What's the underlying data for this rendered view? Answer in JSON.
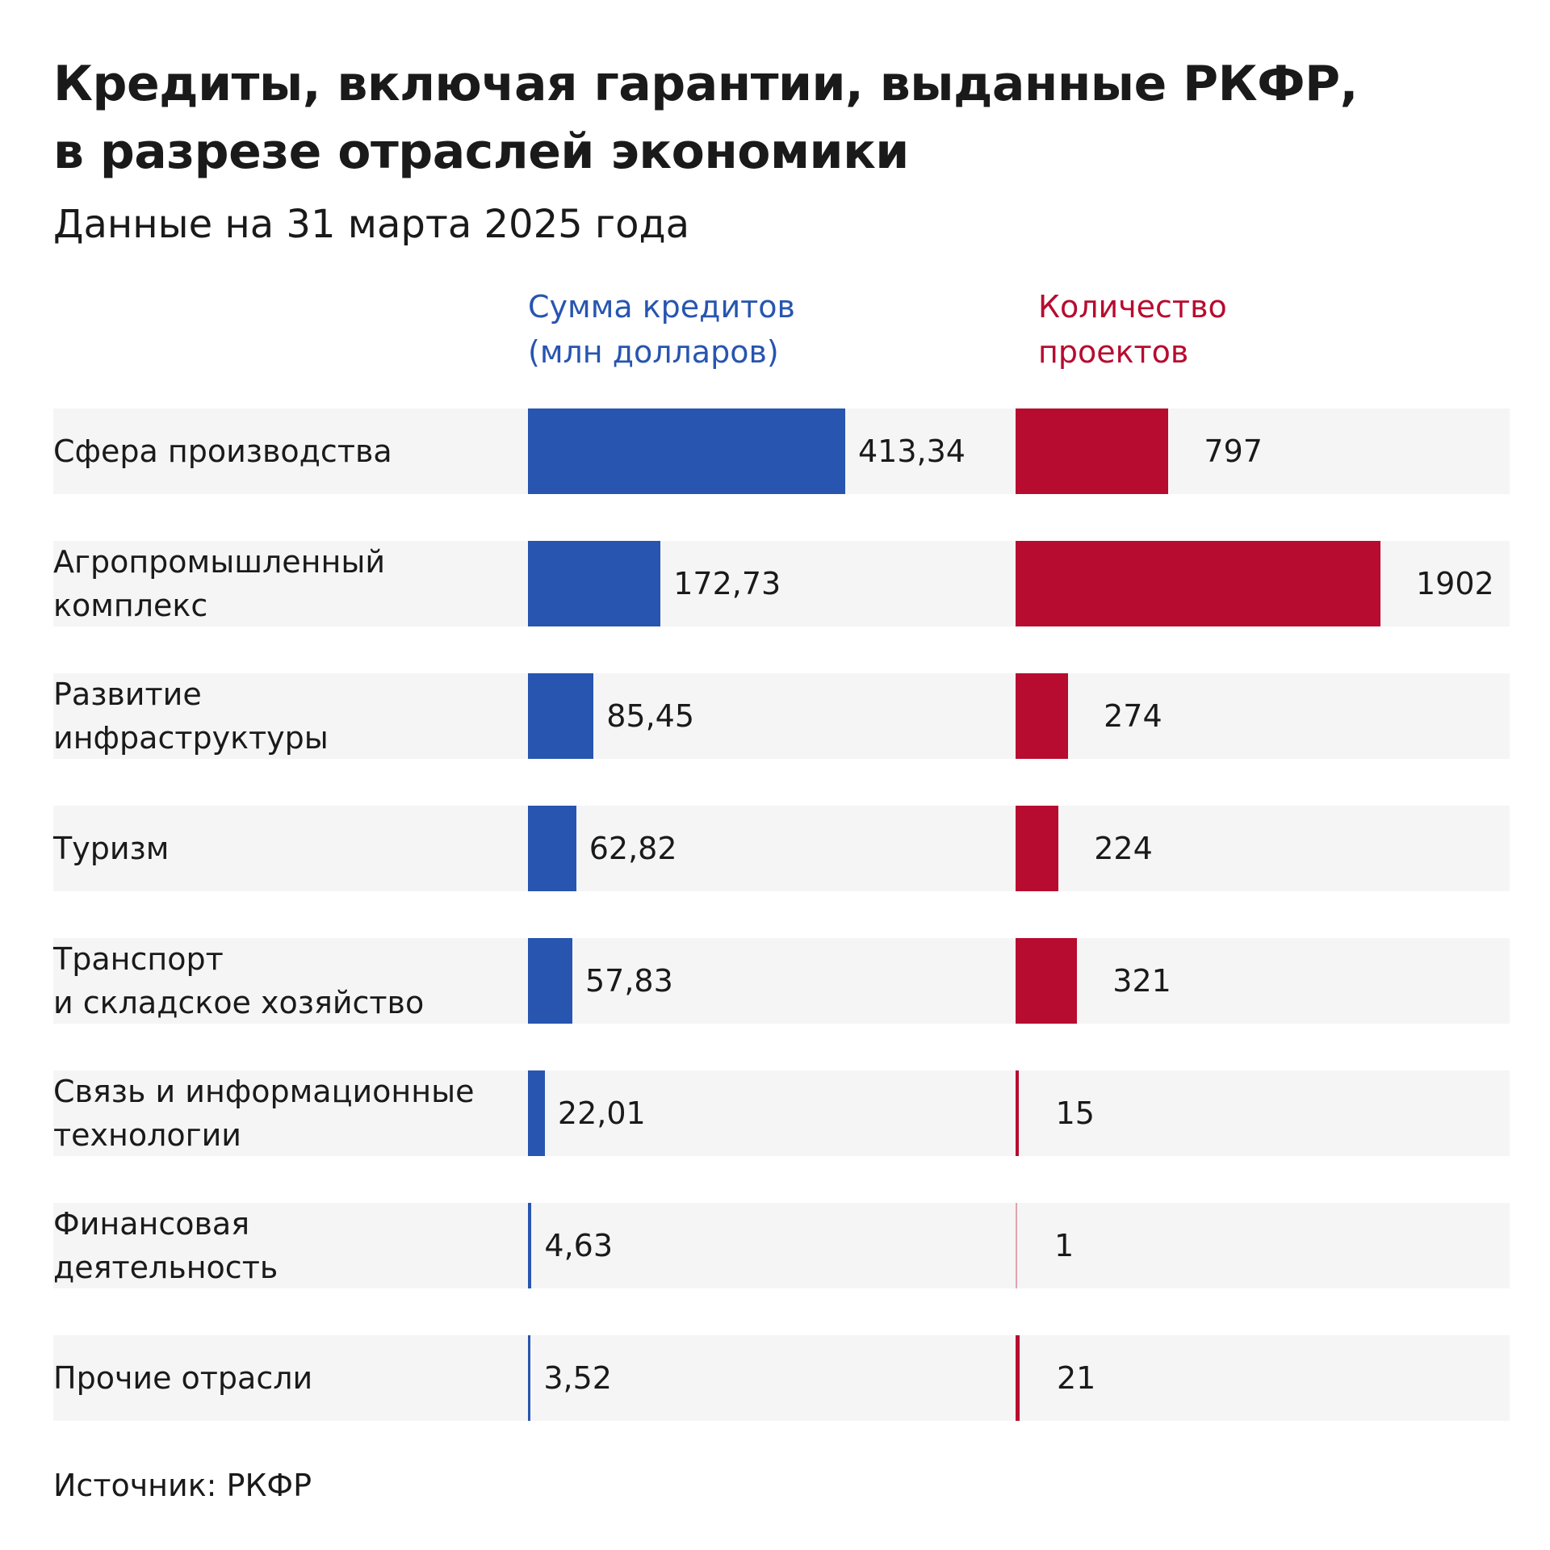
{
  "chart_data": {
    "type": "bar",
    "title": "Кредиты, включая гарантии, выданные РКФР, в разрезе отраслей экономики",
    "title_lines": [
      "Кредиты, включая гарантии, выданные РКФР,",
      "в разрезе отраслей экономики"
    ],
    "subtitle": "Данные на 31 марта 2025 года",
    "orientation": "horizontal",
    "categories": [
      [
        "Сфера производства"
      ],
      [
        "Агропромышленный",
        "комплекс"
      ],
      [
        "Развитие",
        "инфраструктуры"
      ],
      [
        "Туризм"
      ],
      [
        "Транспорт",
        "и складское хозяйство"
      ],
      [
        "Связь и информационные",
        "технологии"
      ],
      [
        "Финансовая",
        "деятельность"
      ],
      [
        "Прочие отрасли"
      ]
    ],
    "series": [
      {
        "name": "Сумма кредитов (млн долларов)",
        "name_lines": [
          "Сумма кредитов",
          "(млн долларов)"
        ],
        "color": "#2755b0",
        "values": [
          413.34,
          172.73,
          85.45,
          62.82,
          57.83,
          22.01,
          4.63,
          3.52
        ],
        "labels": [
          "413,34",
          "172,73",
          "85,45",
          "62,82",
          "57,83",
          "22,01",
          "4,63",
          "3,52"
        ]
      },
      {
        "name": "Количество проектов",
        "name_lines": [
          "Количество",
          "проектов"
        ],
        "color": "#b70c2f",
        "values": [
          797,
          1902,
          274,
          224,
          321,
          15,
          1,
          21
        ],
        "labels": [
          "797",
          "1902",
          "274",
          "224",
          "321",
          "15",
          "1",
          "21"
        ]
      }
    ],
    "source": "Источник: РКФР"
  }
}
